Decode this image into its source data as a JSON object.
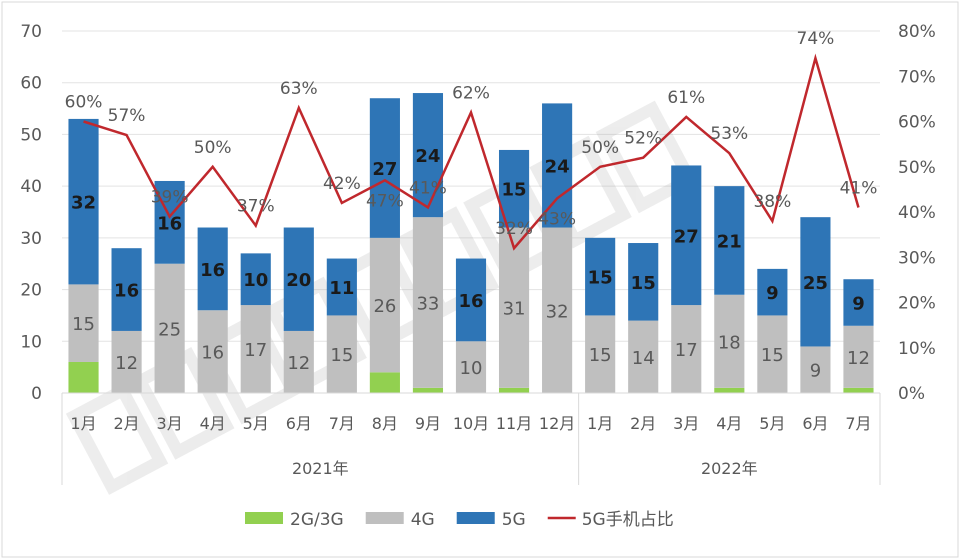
{
  "chart_data": {
    "type": "bar",
    "stacked": true,
    "categories": [
      "1月",
      "2月",
      "3月",
      "4月",
      "5月",
      "6月",
      "7月",
      "8月",
      "9月",
      "10月",
      "11月",
      "12月",
      "1月",
      "2月",
      "3月",
      "4月",
      "5月",
      "6月",
      "7月"
    ],
    "groups": [
      {
        "label": "2021年",
        "count": 12
      },
      {
        "label": "2022年",
        "count": 7
      }
    ],
    "series": [
      {
        "name": "2G/3G",
        "type": "bar",
        "axis": "left",
        "color": "#92d050",
        "values": [
          6,
          0,
          0,
          0,
          0,
          0,
          0,
          4,
          1,
          0,
          1,
          0,
          0,
          0,
          0,
          1,
          0,
          0,
          1
        ]
      },
      {
        "name": "4G",
        "type": "bar",
        "axis": "left",
        "color": "#bfbfbf",
        "label_color": "#595959",
        "values": [
          15,
          12,
          25,
          16,
          17,
          12,
          15,
          26,
          33,
          10,
          31,
          32,
          15,
          14,
          17,
          18,
          15,
          9,
          12
        ]
      },
      {
        "name": "5G",
        "type": "bar",
        "axis": "left",
        "color": "#2e75b6",
        "label_color": "#1a1a1a",
        "values": [
          32,
          16,
          16,
          16,
          10,
          20,
          11,
          27,
          24,
          16,
          15,
          24,
          15,
          15,
          27,
          21,
          9,
          25,
          9
        ]
      },
      {
        "name": "5G手机占比",
        "type": "line",
        "axis": "right",
        "color": "#c0282d",
        "label_color": "#595959",
        "values": [
          60,
          57,
          39,
          50,
          37,
          63,
          42,
          47,
          41,
          62,
          32,
          43,
          50,
          52,
          61,
          53,
          38,
          74,
          41
        ]
      }
    ],
    "yleft": {
      "min": 0,
      "max": 70,
      "ticks": [
        0,
        10,
        20,
        30,
        40,
        50,
        60,
        70
      ]
    },
    "yright": {
      "min": 0,
      "max": 80,
      "ticks": [
        "0%",
        "10%",
        "20%",
        "30%",
        "40%",
        "50%",
        "60%",
        "70%",
        "80%"
      ]
    },
    "grid": true,
    "legend": "bottom"
  },
  "watermark": "CAICT 中国信通院"
}
